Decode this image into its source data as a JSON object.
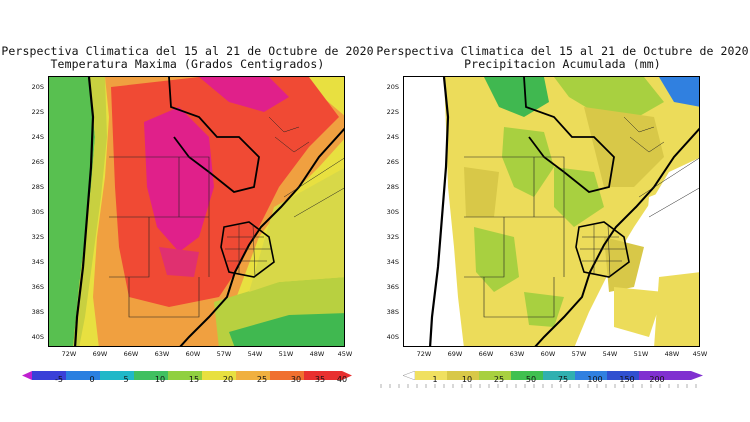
{
  "maps": [
    {
      "id": "temperature",
      "title_line1": "Perspectiva Climatica del 15 al 21 de Octubre de 2020",
      "title_line2": "Temperatura Maxima (Grados Centigrados)",
      "lat_labels": [
        "20S",
        "22S",
        "24S",
        "26S",
        "28S",
        "30S",
        "32S",
        "34S",
        "36S",
        "38S",
        "40S"
      ],
      "lon_labels": [
        "72W",
        "69W",
        "66W",
        "63W",
        "60W",
        "57W",
        "54W",
        "51W",
        "48W",
        "45W"
      ],
      "colorbar": {
        "ticks": [
          "-5",
          "0",
          "5",
          "10",
          "15",
          "20",
          "25",
          "30",
          "35",
          "40"
        ],
        "colors": [
          "#c020d0",
          "#3a40d8",
          "#2a7fe0",
          "#20b8c8",
          "#40c060",
          "#90d040",
          "#e8e040",
          "#f0b040",
          "#f07030",
          "#e83030"
        ]
      }
    },
    {
      "id": "precipitation",
      "title_line1": "Perspectiva Climatica del 15 al 21 de Octubre de 2020",
      "title_line2": "Precipitacion Acumulada (mm)",
      "lat_labels": [
        "20S",
        "22S",
        "24S",
        "26S",
        "28S",
        "30S",
        "32S",
        "34S",
        "36S",
        "38S",
        "40S"
      ],
      "lon_labels": [
        "72W",
        "69W",
        "66W",
        "63W",
        "60W",
        "57W",
        "54W",
        "51W",
        "48W",
        "45W"
      ],
      "colorbar": {
        "ticks": [
          "1",
          "10",
          "25",
          "50",
          "75",
          "100",
          "150",
          "200"
        ],
        "colors": [
          "#ffffff",
          "#f0e060",
          "#d8c848",
          "#a8d040",
          "#40c050",
          "#30b0b0",
          "#3080e0",
          "#3050d0",
          "#8030d0"
        ]
      }
    }
  ]
}
